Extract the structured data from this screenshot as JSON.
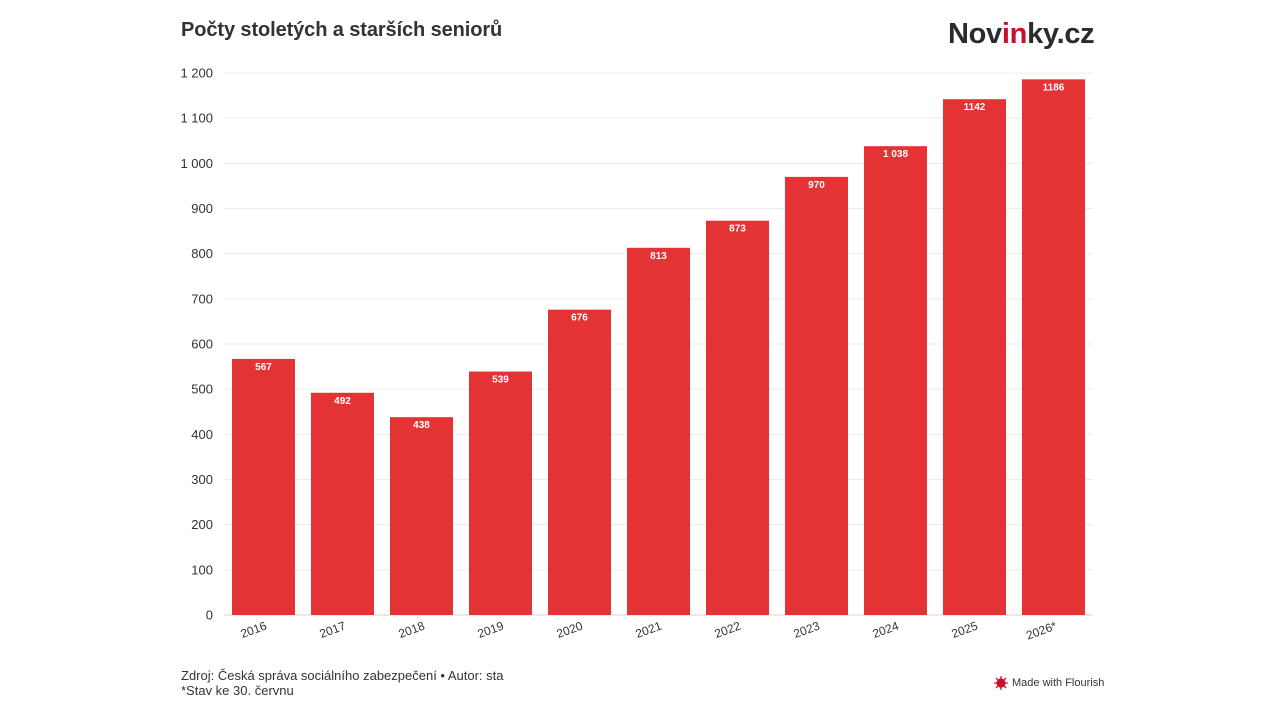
{
  "header": {
    "title": "Počty stoletých a starších seniorů",
    "logo": {
      "pre": "Nov",
      "accent": "in",
      "post": "ky.cz"
    }
  },
  "chart_data": {
    "type": "bar",
    "categories": [
      "2016",
      "2017",
      "2018",
      "2019",
      "2020",
      "2021",
      "2022",
      "2023",
      "2024",
      "2025",
      "2026*"
    ],
    "values": [
      567,
      492,
      438,
      539,
      676,
      813,
      873,
      970,
      1038,
      1142,
      1186
    ],
    "value_labels": [
      "567",
      "492",
      "438",
      "539",
      "676",
      "813",
      "873",
      "970",
      "1 038",
      "1142",
      "1186"
    ],
    "ylim": [
      0,
      1200
    ],
    "yticks": [
      0,
      100,
      200,
      300,
      400,
      500,
      600,
      700,
      800,
      900,
      1000,
      1100,
      1200
    ],
    "ytick_labels": [
      "0",
      "100",
      "200",
      "300",
      "400",
      "500",
      "600",
      "700",
      "800",
      "900",
      "1 000",
      "1 100",
      "1 200"
    ],
    "xlabel": "",
    "ylabel": "",
    "grid": true,
    "bar_color": "#e33335"
  },
  "footer": {
    "source": "Zdroj: Česká správa sociálního zabezpečení • Autor: sta",
    "note": "*Stav ke 30. červnu",
    "flourish": "Made with Flourish"
  },
  "colors": {
    "bar": "#e33335",
    "logo_accent": "#c8102e",
    "text": "#333333"
  }
}
